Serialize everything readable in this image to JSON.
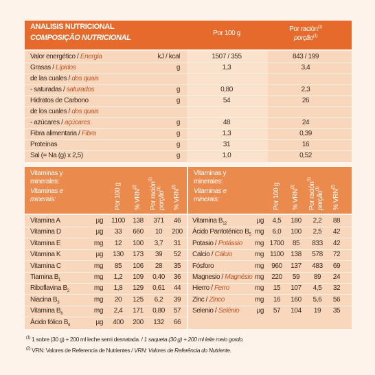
{
  "header": {
    "title": "ANALISIS NUTRICIONAL",
    "subtitle": "COMPOSIÇÃO NUTRICIONAL",
    "col1": "Por 100 g",
    "col2": "Por ración",
    "col2_sup": "(1)",
    "col2_pt": "porção",
    "col2_pt_sup": "(1)"
  },
  "nutrients": [
    {
      "es": "Valor energético / ",
      "pt": "Energia",
      "unit": "kJ / kcal",
      "per100": "1507 / 355",
      "portion": "843 / 199"
    },
    {
      "es": "Grasas / ",
      "pt": "Lípidos",
      "unit": "g",
      "per100": "1,3",
      "portion": "3,4"
    },
    {
      "es": "de las cuales / ",
      "pt": "dos quais"
    },
    {
      "es": " - saturadas / ",
      "pt": "saturados",
      "unit": "g",
      "per100": "0,80",
      "portion": "2,3"
    },
    {
      "es": "Hidratos de Carbono",
      "unit": "g",
      "per100": "54",
      "portion": "26"
    },
    {
      "es": "de los cuales / ",
      "pt": "dos quais"
    },
    {
      "es": " - azúcares / ",
      "pt": "açúcares",
      "unit": "g",
      "per100": "48",
      "portion": "24"
    },
    {
      "es": "Fibra alimentaria / ",
      "pt": "Fibra",
      "unit": "g",
      "per100": "1,3",
      "portion": "0,39"
    },
    {
      "es": "Proteínas",
      "unit": "g",
      "per100": "31",
      "portion": "16"
    },
    {
      "es": "Sal (= Na (g) x 2,5)",
      "unit": "g",
      "per100": "1,0",
      "portion": "0,52"
    }
  ],
  "vitamins_header": {
    "es": "Vitaminas y minerales:",
    "pt": "Vitaminas e minerais:",
    "columns": [
      {
        "label": "Por 100 g"
      },
      {
        "label": "% VRN",
        "sup": "(2)"
      },
      {
        "label": "Por ración",
        "sup": "(1)",
        "pt": "porção",
        "pt_sup": "(1)"
      },
      {
        "label": "% VRN",
        "sup": "(2)"
      }
    ]
  },
  "vitamins_left": [
    {
      "name": "Vitamina A",
      "unit": "µg",
      "cells": [
        "1100",
        "138",
        "371",
        "46"
      ]
    },
    {
      "name": "Vitamina D",
      "unit": "µg",
      "cells": [
        "33",
        "660",
        "10",
        "200"
      ]
    },
    {
      "name": "Vitamina E",
      "unit": "mg",
      "cells": [
        "12",
        "100",
        "3,7",
        "31"
      ]
    },
    {
      "name": "Vitamina K",
      "unit": "µg",
      "cells": [
        "130",
        "173",
        "39",
        "52"
      ]
    },
    {
      "name": "Vitamina C",
      "unit": "mg",
      "cells": [
        "85",
        "106",
        "28",
        "35"
      ]
    },
    {
      "name": "Tiamina B",
      "sub": "1",
      "unit": "mg",
      "cells": [
        "1,2",
        "109",
        "0,40",
        "36"
      ]
    },
    {
      "name": "Riboflavina B",
      "sub": "2",
      "unit": "mg",
      "cells": [
        "1,8",
        "129",
        "0,61",
        "44"
      ]
    },
    {
      "name": "Niacina B",
      "sub": "3",
      "unit": "mg",
      "cells": [
        "20",
        "125",
        "6,2",
        "39"
      ]
    },
    {
      "name": "Vitamina B",
      "sub": "6",
      "unit": "mg",
      "cells": [
        "2,4",
        "171",
        "0,80",
        "57"
      ]
    },
    {
      "name": "Ácido fólico B",
      "sub": "9",
      "unit": "µg",
      "cells": [
        "400",
        "200",
        "132",
        "66"
      ]
    }
  ],
  "vitamins_right": [
    {
      "name": "Vitamina B",
      "sub": "12",
      "unit": "µg",
      "cells": [
        "4,5",
        "180",
        "2,2",
        "88"
      ]
    },
    {
      "name": "Ácido Pantoténico B",
      "sub": "5",
      "unit": "mg",
      "cells": [
        "6,0",
        "100",
        "2,5",
        "42"
      ]
    },
    {
      "name": "Potasio / ",
      "pt": "Potássio",
      "unit": "mg",
      "cells": [
        "1700",
        "85",
        "833",
        "42"
      ]
    },
    {
      "name": "Calcio / ",
      "pt": "Cálcio",
      "unit": "mg",
      "cells": [
        "1100",
        "138",
        "578",
        "72"
      ]
    },
    {
      "name": "Fósforo",
      "unit": "mg",
      "cells": [
        "960",
        "137",
        "483",
        "69"
      ]
    },
    {
      "name": "Magnesio / ",
      "pt": "Magnésio",
      "unit": "mg",
      "cells": [
        "220",
        "59",
        "89",
        "24"
      ]
    },
    {
      "name": "Hierro / ",
      "pt": "Ferro",
      "unit": "mg",
      "cells": [
        "15",
        "107",
        "4,5",
        "32"
      ]
    },
    {
      "name": "Zinc / ",
      "pt": "Zinco",
      "unit": "mg",
      "cells": [
        "16",
        "160",
        "5,6",
        "56"
      ]
    },
    {
      "name": "Selenio / ",
      "pt": "Selénio",
      "unit": "µg",
      "cells": [
        "57",
        "104",
        "19",
        "35"
      ]
    }
  ],
  "footnotes": [
    {
      "mark": "(1)",
      "es": "1 sobre (30 g) + 200 ml leche semi desnatada. / ",
      "pt": "1 saqueta (30 g) + 200 ml leite meio gordo."
    },
    {
      "mark": "(2)",
      "es": "VRN: Valores de Referencia de Nutrientes / ",
      "pt": "VRN: Valores de Referência do Nutriente."
    }
  ]
}
